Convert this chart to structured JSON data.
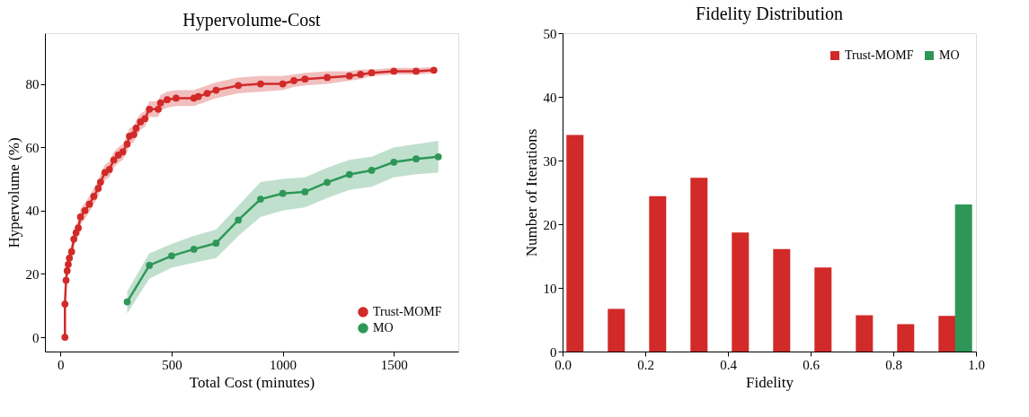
{
  "chart_data": [
    {
      "type": "line",
      "title": "Hypervolume-Cost",
      "xlabel": "Total Cost (minutes)",
      "ylabel": "Hypervolume (%)",
      "xlim": [
        -70,
        1790
      ],
      "ylim": [
        -4.5,
        96
      ],
      "xticks": [
        0,
        500,
        1000,
        1500
      ],
      "yticks": [
        0,
        20,
        40,
        60,
        80
      ],
      "grid": false,
      "legend": "bottom right",
      "marker": "circle",
      "line_style": "solid",
      "series": [
        {
          "name": "Trust-MOMF",
          "color": "#d12a28",
          "x": [
            20,
            20,
            25,
            30,
            35,
            40,
            50,
            60,
            70,
            80,
            90,
            110,
            130,
            150,
            170,
            180,
            200,
            220,
            240,
            260,
            280,
            300,
            310,
            330,
            340,
            360,
            380,
            400,
            440,
            450,
            480,
            520,
            600,
            620,
            660,
            700,
            800,
            900,
            1000,
            1050,
            1100,
            1200,
            1300,
            1350,
            1400,
            1500,
            1600,
            1680
          ],
          "values": [
            0,
            10.5,
            18,
            21,
            23,
            25,
            27,
            31,
            33,
            34.5,
            38,
            40,
            42,
            44.5,
            47,
            49,
            52,
            53,
            56,
            57.5,
            58.5,
            61,
            63.5,
            64,
            66,
            68,
            69,
            72,
            72,
            74,
            75,
            75.5,
            75.5,
            76,
            77,
            78,
            79.5,
            80,
            80,
            81,
            81.5,
            82,
            82.5,
            83,
            83.5,
            84,
            84,
            84.3
          ],
          "lower": [
            -1,
            8,
            15.5,
            18.5,
            20.5,
            22.5,
            24.5,
            28.5,
            30.5,
            32,
            35.5,
            37.5,
            39.5,
            42,
            44.5,
            46.5,
            49.5,
            50.5,
            53.5,
            55,
            56,
            58.5,
            61,
            61.5,
            63.5,
            65.5,
            66.5,
            69.5,
            69.5,
            71.5,
            72.5,
            73,
            73,
            73.5,
            74.5,
            75.5,
            77,
            77.5,
            78,
            79,
            79.5,
            80,
            81,
            81.5,
            82.5,
            83,
            83,
            83.3
          ],
          "upper": [
            1,
            13,
            20.5,
            23.5,
            25.5,
            27.5,
            29.5,
            33.5,
            35.5,
            37,
            40.5,
            42.5,
            44.5,
            47,
            49.5,
            51.5,
            54.5,
            55.5,
            58.5,
            60,
            61,
            63.5,
            66,
            66.5,
            68.5,
            70.5,
            71.5,
            74.5,
            74.5,
            76.5,
            77.5,
            78,
            78,
            78.5,
            79.5,
            80.5,
            82,
            82.5,
            82.5,
            83,
            83.5,
            84,
            84,
            84.5,
            84.5,
            85,
            85,
            85.3
          ]
        },
        {
          "name": "MO",
          "color": "#2e9758",
          "x": [
            300,
            400,
            500,
            600,
            700,
            800,
            900,
            1000,
            1100,
            1200,
            1300,
            1400,
            1500,
            1600,
            1700
          ],
          "values": [
            11.2,
            22.7,
            25.7,
            27.8,
            29.7,
            37,
            43.6,
            45.4,
            45.9,
            48.9,
            51.4,
            52.7,
            55.3,
            56.3,
            57
          ],
          "lower": [
            7.5,
            18.5,
            22,
            23.5,
            25,
            32,
            38,
            40,
            41,
            44,
            46.5,
            47.5,
            50.5,
            51.5,
            52
          ],
          "upper": [
            14.5,
            26.5,
            29.5,
            32,
            34,
            41.5,
            49,
            50,
            50.5,
            53.5,
            56,
            57,
            60,
            61,
            62
          ]
        }
      ]
    },
    {
      "type": "bar",
      "title": "Fidelity Distribution",
      "xlabel": "Fidelity",
      "ylabel": "Number of Iterations",
      "xlim": [
        0,
        1
      ],
      "ylim": [
        0,
        50
      ],
      "xticks": [
        {
          "value": 0,
          "label": "0.0"
        },
        0.2,
        0.4,
        0.6,
        0.8,
        {
          "value": 1,
          "label": "1.0"
        }
      ],
      "yticks": [
        0,
        10,
        20,
        30,
        40,
        50
      ],
      "grid": false,
      "legend": "top right",
      "series": [
        {
          "name": "Trust-MOMF",
          "color": "#d12a28",
          "x": [
            0.03,
            0.13,
            0.23,
            0.33,
            0.43,
            0.53,
            0.63,
            0.73,
            0.83,
            0.93
          ],
          "values": [
            34,
            6.7,
            24.4,
            27.3,
            18.7,
            16.1,
            13.2,
            5.7,
            4.3,
            5.6
          ]
        },
        {
          "name": "MO",
          "color": "#2e9758",
          "x": [
            0.97
          ],
          "values": [
            23.1
          ]
        }
      ]
    }
  ]
}
